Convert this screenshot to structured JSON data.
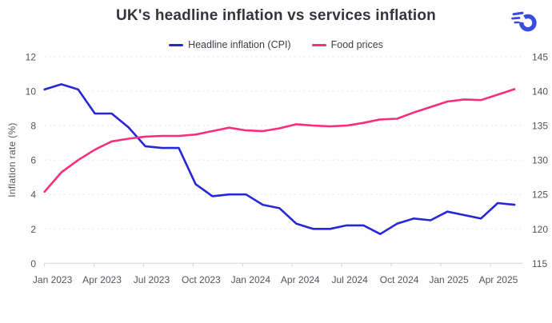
{
  "header": {
    "title": "UK's headline inflation vs services inflation",
    "logo": "speed-ring-logo",
    "logo_color": "#3a4be0"
  },
  "chart_data": {
    "type": "line",
    "title": "UK's headline inflation vs services inflation",
    "legend_position": "top-center",
    "grid": "horizontal-dashed",
    "background": "#ffffff",
    "x": [
      "Jan 2023",
      "Feb 2023",
      "Mar 2023",
      "Apr 2023",
      "May 2023",
      "Jun 2023",
      "Jul 2023",
      "Aug 2023",
      "Sep 2023",
      "Oct 2023",
      "Nov 2023",
      "Dec 2023",
      "Jan 2024",
      "Feb 2024",
      "Mar 2024",
      "Apr 2024",
      "May 2024",
      "Jun 2024",
      "Jul 2024",
      "Aug 2024",
      "Sep 2024",
      "Oct 2024",
      "Nov 2024",
      "Dec 2024",
      "Jan 2025",
      "Feb 2025",
      "Mar 2025",
      "Apr 2025",
      "May 2025"
    ],
    "x_tick_labels": [
      "Jan 2023",
      "Apr 2023",
      "Jul 2023",
      "Oct 2023",
      "Jan 2024",
      "Apr 2024",
      "Jul 2024",
      "Oct 2024",
      "Jan 2025",
      "Apr 2025"
    ],
    "series": [
      {
        "name": "Headline inflation (CPI)",
        "color": "#2727d8",
        "axis": "left",
        "values": [
          10.1,
          10.4,
          10.1,
          8.7,
          8.7,
          7.9,
          6.8,
          6.7,
          6.7,
          4.6,
          3.9,
          4.0,
          4.0,
          3.4,
          3.2,
          2.3,
          2.0,
          2.0,
          2.2,
          2.2,
          1.7,
          2.3,
          2.6,
          2.5,
          3.0,
          2.8,
          2.6,
          3.5,
          3.4
        ]
      },
      {
        "name": "Food prices",
        "color": "#f62e7c",
        "axis": "right",
        "values": [
          125.4,
          128.2,
          130.0,
          131.5,
          132.7,
          133.1,
          133.4,
          133.5,
          133.5,
          133.7,
          134.2,
          134.7,
          134.3,
          134.2,
          134.6,
          135.2,
          135.0,
          134.9,
          135.0,
          135.4,
          135.9,
          136.0,
          136.9,
          137.7,
          138.5,
          138.8,
          138.7,
          139.5,
          140.3
        ]
      }
    ],
    "left_axis": {
      "label": "Inflation rate (%)",
      "ticks": [
        0,
        2,
        4,
        6,
        8,
        10,
        12
      ],
      "range": [
        0,
        12
      ]
    },
    "right_axis": {
      "label": "",
      "ticks": [
        115,
        120,
        125,
        130,
        135,
        140,
        145
      ],
      "range": [
        115,
        145
      ]
    },
    "colors": {
      "grid": "#e4e4e6",
      "axis_line": "#d9d9dc",
      "tick_text": "#53535b",
      "title_text": "#34343e"
    }
  }
}
